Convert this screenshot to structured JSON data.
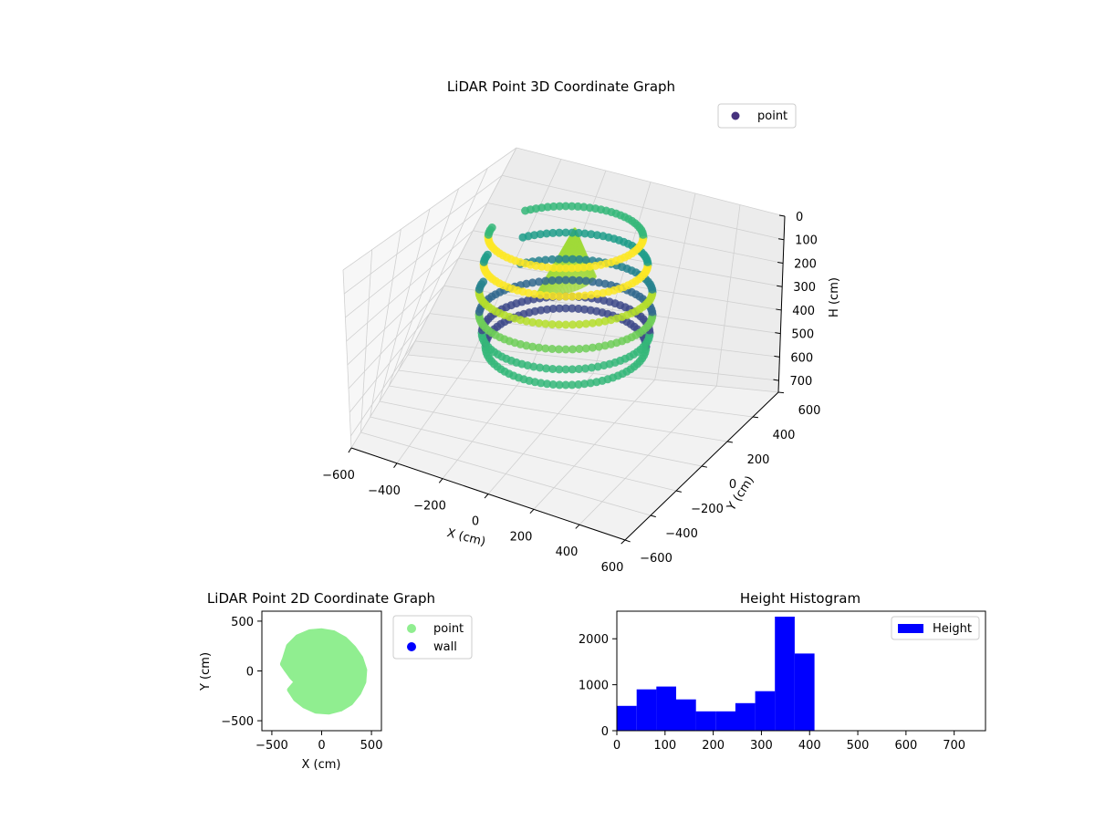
{
  "chart_data": [
    {
      "type": "scatter",
      "subtype": "3d",
      "title": "LiDAR Point 3D Coordinate Graph",
      "xlabel": "X (cm)",
      "ylabel": "Y (cm)",
      "zlabel": "H (cm)",
      "xlim": [
        -600,
        600
      ],
      "ylim": [
        -600,
        600
      ],
      "zlim": [
        0,
        750
      ],
      "z_inverted": true,
      "xticks": [
        "−600",
        "−400",
        "−200",
        "0",
        "200",
        "400",
        "600"
      ],
      "yticks": [
        "−600",
        "−400",
        "−200",
        "0",
        "200",
        "400",
        "600"
      ],
      "zticks": [
        "0",
        "100",
        "200",
        "300",
        "400",
        "500",
        "600",
        "700"
      ],
      "legend": {
        "position": "top-right",
        "entries": [
          {
            "label": "point",
            "color": "#46327e"
          }
        ]
      },
      "colormap": "viridis",
      "grid": true
    },
    {
      "type": "scatter",
      "title": "LiDAR Point 2D Coordinate Graph",
      "xlabel": "X (cm)",
      "ylabel": "Y (cm)",
      "xlim": [
        -600,
        600
      ],
      "ylim": [
        -600,
        600
      ],
      "xticks": [
        "−500",
        "0",
        "500"
      ],
      "yticks": [
        "−500",
        "0",
        "500"
      ],
      "legend": {
        "position": "outside-right",
        "entries": [
          {
            "label": "point",
            "color": "#90ee90"
          },
          {
            "label": "wall",
            "color": "#0000ff"
          }
        ]
      },
      "point_region_outline": [
        [
          -370,
          120
        ],
        [
          -330,
          250
        ],
        [
          -240,
          340
        ],
        [
          -120,
          390
        ],
        [
          0,
          400
        ],
        [
          120,
          380
        ],
        [
          230,
          320
        ],
        [
          320,
          230
        ],
        [
          390,
          130
        ],
        [
          430,
          10
        ],
        [
          420,
          -110
        ],
        [
          370,
          -220
        ],
        [
          290,
          -320
        ],
        [
          190,
          -380
        ],
        [
          70,
          -410
        ],
        [
          -60,
          -400
        ],
        [
          -170,
          -350
        ],
        [
          -260,
          -280
        ],
        [
          -320,
          -190
        ],
        [
          -250,
          -110
        ],
        [
          -300,
          -60
        ],
        [
          -350,
          10
        ],
        [
          -390,
          70
        ]
      ],
      "wall_points": []
    },
    {
      "type": "histogram",
      "title": "Height Histogram",
      "xlabel": "",
      "ylabel": "",
      "xlim": [
        0,
        765
      ],
      "ylim": [
        0,
        2600
      ],
      "xticks": [
        "0",
        "100",
        "200",
        "300",
        "400",
        "500",
        "600",
        "700"
      ],
      "yticks": [
        "0",
        "1000",
        "2000"
      ],
      "color": "#0000ff",
      "legend": {
        "position": "top-right",
        "entries": [
          {
            "label": "Height",
            "color": "#0000ff"
          }
        ]
      },
      "bin_width": 41,
      "bins": [
        {
          "start": 0,
          "count": 540
        },
        {
          "start": 41,
          "count": 900
        },
        {
          "start": 82,
          "count": 960
        },
        {
          "start": 123,
          "count": 680
        },
        {
          "start": 164,
          "count": 420
        },
        {
          "start": 205,
          "count": 420
        },
        {
          "start": 246,
          "count": 600
        },
        {
          "start": 287,
          "count": 860
        },
        {
          "start": 328,
          "count": 2480
        },
        {
          "start": 369,
          "count": 1680
        },
        {
          "start": 410,
          "count": 0
        },
        {
          "start": 451,
          "count": 0
        },
        {
          "start": 492,
          "count": 0
        },
        {
          "start": 533,
          "count": 0
        },
        {
          "start": 574,
          "count": 0
        },
        {
          "start": 615,
          "count": 0
        },
        {
          "start": 656,
          "count": 0
        },
        {
          "start": 697,
          "count": 0
        },
        {
          "start": 738,
          "count": 0
        }
      ]
    }
  ]
}
